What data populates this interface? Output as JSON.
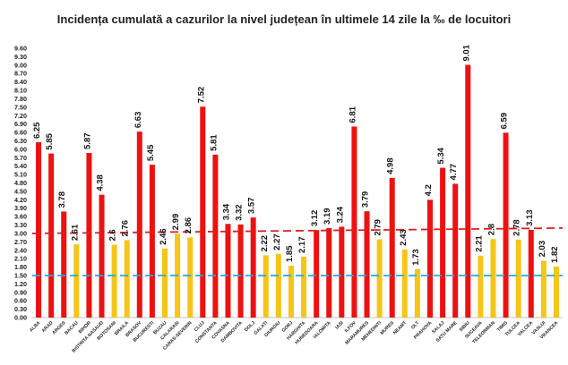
{
  "chart_data": {
    "type": "bar",
    "title": "Incidența cumulată a cazurilor la nivel județean în ultimele 14 zile la ‰ de locuitori",
    "ylim": [
      0,
      9.6
    ],
    "yticks": [
      "0.00",
      "0.30",
      "0.60",
      "0.90",
      "1.20",
      "1.50",
      "1.80",
      "2.10",
      "2.40",
      "2.70",
      "3.00",
      "3.30",
      "3.60",
      "3.90",
      "4.20",
      "4.50",
      "4.80",
      "5.10",
      "5.40",
      "5.70",
      "6.00",
      "6.30",
      "6.60",
      "6.90",
      "7.20",
      "7.50",
      "7.80",
      "8.10",
      "8.40",
      "8.70",
      "9.00",
      "9.30",
      "9.60"
    ],
    "categories": [
      "ALBA",
      "ARAD",
      "ARGES",
      "BACAU",
      "BIHOR",
      "BISTRITA NASAUD",
      "BOTOSANI",
      "BRAILA",
      "BRASOV",
      "BUCURESTI",
      "BUZAU",
      "CALARASI",
      "CARAS-SEVERIN",
      "CLUJ",
      "CONSTANTA",
      "COVASNA",
      "DAMBOVITA",
      "DOLJ",
      "GALATI",
      "GIURGIU",
      "GORJ",
      "HARGHITA",
      "HUNEDOARA",
      "IALOMITA",
      "IASI",
      "ILFOV",
      "MARAMURES",
      "MEHEDINTI",
      "MURES",
      "NEAMT",
      "OLT",
      "PRAHOVA",
      "SALAJ",
      "SATU MARE",
      "SIBIU",
      "SUCEAVA",
      "TELEORMAN",
      "TIMIS",
      "TULCEA",
      "VALCEA",
      "VASLUI",
      "VRANCEA"
    ],
    "values": [
      6.25,
      5.85,
      3.78,
      2.61,
      5.87,
      4.38,
      2.6,
      2.76,
      6.63,
      5.45,
      2.46,
      2.99,
      2.86,
      7.52,
      5.81,
      3.34,
      3.32,
      3.57,
      2.22,
      2.27,
      1.85,
      2.17,
      3.12,
      3.19,
      3.24,
      6.81,
      3.79,
      2.79,
      4.98,
      2.43,
      1.73,
      4.2,
      5.34,
      4.77,
      9.01,
      2.21,
      2.8,
      6.59,
      2.78,
      3.13,
      2.03,
      1.82
    ],
    "value_labels": [
      "6.25",
      "5.85",
      "3.78",
      "2.61",
      "5.87",
      "4.38",
      "2.6",
      "2.76",
      "6.63",
      "5.45",
      "2.46",
      "2.99",
      "2.86",
      "7.52",
      "5.81",
      "3.34",
      "3.32",
      "3.57",
      "2.22",
      "2.27",
      "1.85",
      "2.17",
      "3.12",
      "3.19",
      "3.24",
      "6.81",
      "3.79",
      "2.79",
      "4.98",
      "2.43",
      "1.73",
      "4.2",
      "5.34",
      "4.77",
      "9.01",
      "2.21",
      "2.8",
      "6.59",
      "2.78",
      "3.13",
      "2.03",
      "1.82"
    ],
    "threshold_high": 3.0,
    "threshold_low": 1.5,
    "grid": false,
    "legend": "none"
  },
  "colors": {
    "above_high": "#ee1111",
    "below_high": "#f5c518",
    "high_line": "#e02020",
    "low_line": "#2aa7dd",
    "axis": "#888888"
  }
}
